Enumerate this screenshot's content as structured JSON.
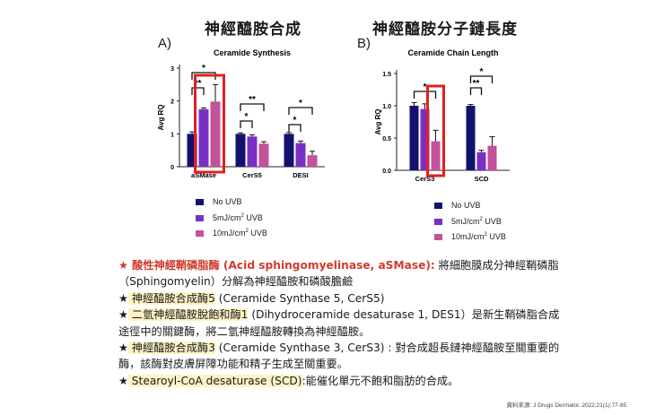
{
  "titles": {
    "left_cn": "神經醯胺合成",
    "right_cn": "神經醯胺分子鏈長度",
    "panel_a": "A)",
    "panel_b": "B)"
  },
  "chart_data": [
    {
      "type": "bar",
      "title": "Ceramide Synthesis",
      "ylabel": "Avg RQ",
      "ylim": [
        0,
        3
      ],
      "yticks": [
        "0",
        "1",
        "2",
        "3"
      ],
      "categories": [
        "aSMase",
        "CerS5",
        "DESI"
      ],
      "series": [
        {
          "name": "No UVB",
          "color": "#12126e",
          "values": [
            1.0,
            1.0,
            1.0
          ],
          "err": [
            0.06,
            0.03,
            0.04
          ]
        },
        {
          "name": "5mJ/cm² UVB",
          "color": "#7a2fc4",
          "values": [
            1.75,
            0.92,
            0.72
          ],
          "err": [
            0.04,
            0.05,
            0.06
          ]
        },
        {
          "name": "10mJ/cm² UVB",
          "color": "#c2529a",
          "values": [
            1.98,
            0.7,
            0.35
          ],
          "err": [
            0.52,
            0.06,
            0.12
          ]
        }
      ],
      "significance": [
        "*",
        "**",
        "**",
        "*",
        "*",
        "*"
      ],
      "highlight": "aSMase 5mJ/cm² & 10mJ/cm² UVB"
    },
    {
      "type": "bar",
      "title": "Ceramide Chain Length",
      "ylabel": "Avg RQ",
      "ylim": [
        0,
        1.5
      ],
      "yticks": [
        "0.0",
        "0.5",
        "1.0",
        "1.5"
      ],
      "categories": [
        "CerS3",
        "SCD"
      ],
      "series": [
        {
          "name": "No UVB",
          "color": "#12126e",
          "values": [
            1.0,
            1.0
          ],
          "err": [
            0.05,
            0.02
          ]
        },
        {
          "name": "5mJ/cm² UVB",
          "color": "#7a2fc4",
          "values": [
            0.95,
            0.28
          ],
          "err": [
            0.08,
            0.03
          ]
        },
        {
          "name": "10mJ/cm² UVB",
          "color": "#c2529a",
          "values": [
            0.45,
            0.38
          ],
          "err": [
            0.17,
            0.14
          ]
        }
      ],
      "significance": [
        "*",
        "**",
        "*"
      ],
      "highlight": "CerS3 10mJ/cm² UVB"
    }
  ],
  "legend": {
    "no_uvb": "No UVB",
    "uvb5": "5mJ/cm",
    "uvb10": "10mJ/cm",
    "sup": "2",
    "unit_suffix": " UVB"
  },
  "desc": {
    "l1_star": "★",
    "l1_red": " 酸性神經鞘磷脂酶 (Acid sphingomyelinase, aSMase):",
    "l1_rest": " 將細胞膜成分神經鞘磷脂（Sphingomyelin）分解為神經醯胺和磷酸膽鹼",
    "l2_star": "★",
    "l2_hl": " 神經醯胺合成酶5",
    "l2_rest": " (Ceramide Synthase 5, CerS5)",
    "l3_star": "★",
    "l3_hl": " 二氫神經醯胺脫飽和酶1",
    "l3_rest": " (Dihydroceramide desaturase 1, DES1）是新生鞘磷脂合成途徑中的關鍵酶，將二氫神經醯胺轉換為神經醯胺。",
    "l4_star": "★",
    "l4_hl": " 神經醯胺合成酶3",
    "l4_rest": " (Ceramide Synthase 3, CerS3) : 對合成超長鏈神經醯胺至關重要的酶，該酶對皮膚屏障功能和精子生成至關重要。",
    "l5_star": "★",
    "l5_hl": " Stearoyl-CoA desaturase (SCD)",
    "l5_rest": ":能催化單元不飽和脂肪的合成。"
  },
  "source": "資料來源: J Drugs Dermatol. 2022;21(1):77-85."
}
